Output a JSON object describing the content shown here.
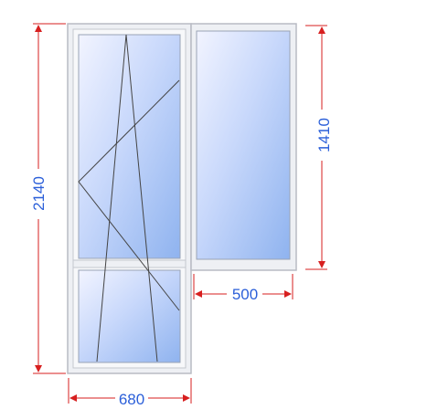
{
  "dimensions": {
    "total_height": "2140",
    "window_height": "1410",
    "window_width": "500",
    "door_width": "680"
  },
  "colors": {
    "dimension_line": "#d71f1f",
    "dimension_text": "#2b5fd9",
    "frame": "#eef0f4",
    "frame_edge": "#b9bcc4",
    "glass_light": "#f2f4ff",
    "glass_dark": "#8fb3ef",
    "opening_line": "#444444"
  }
}
